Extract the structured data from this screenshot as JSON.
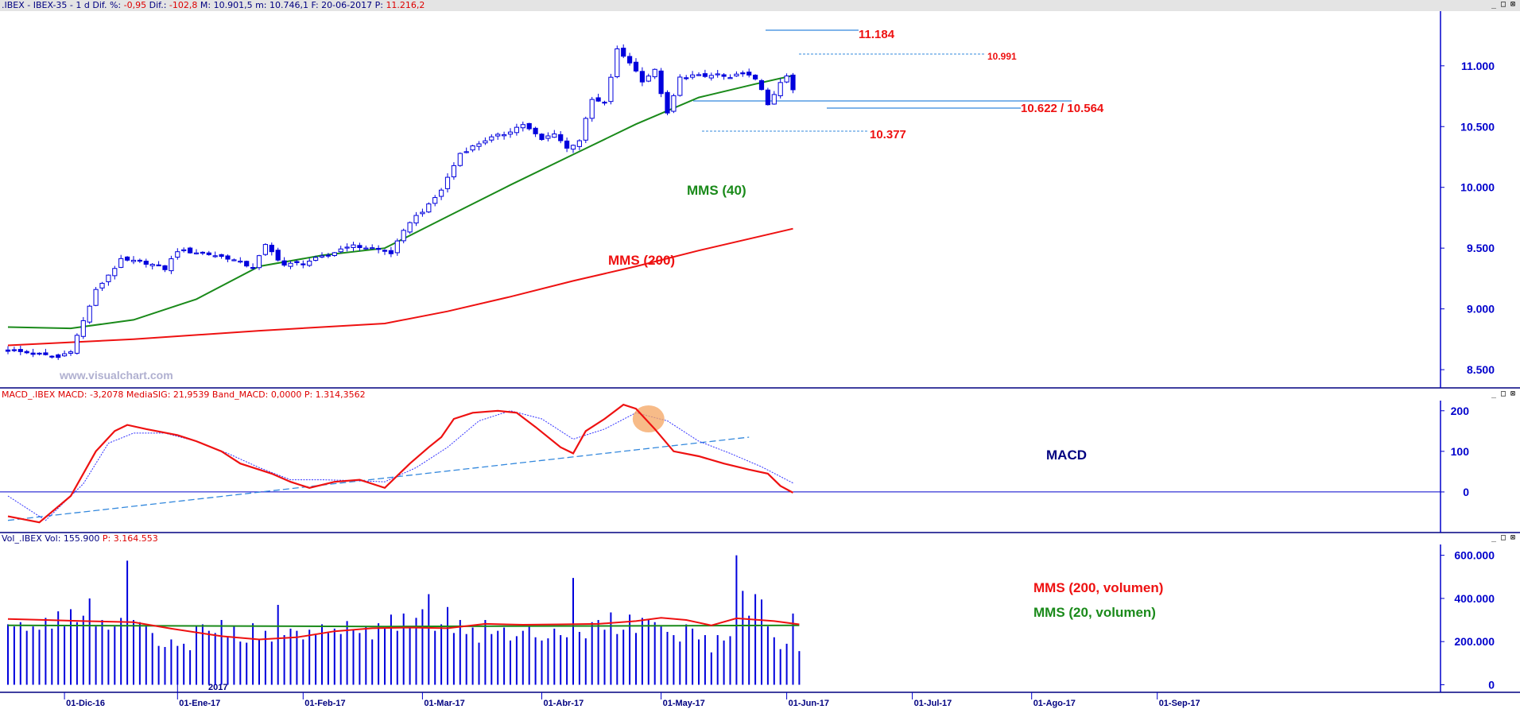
{
  "colors": {
    "candle": "#0000dd",
    "ma40": "#1a8a1a",
    "ma200": "#ee1111",
    "macd_line": "#ee1111",
    "signal_line": "#3333ff",
    "axis": "#0000cc",
    "annot_red": "#ee1111",
    "annot_green": "#1a8a1a",
    "annot_navy": "#000080",
    "highlight": "#f4a460",
    "watermark": "#b0b0d0",
    "header_text": "#000080",
    "header_value": "#dd0000"
  },
  "price_pane": {
    "header": {
      "symbol": ".IBEX - IBEX-35 -  1 d",
      "dif_pct_label": "Dif. %:",
      "dif_pct_value": "-0,95",
      "dif_label": "Dif.:",
      "dif_value": "-102,8",
      "max_label": "M:",
      "max_value": "10.901,5",
      "min_label": "m:",
      "min_value": "10.746,1",
      "date_label": "F:",
      "date_value": "20-06-2017",
      "price_label": "P:",
      "price_value": "11.216,2"
    },
    "watermark": "www.visualchart.com",
    "annotations": {
      "high": "11.184",
      "last": "10.991",
      "support": "10.622 / 10.564",
      "low": "10.377",
      "ma40_label": "MMS (40)",
      "ma200_label": "MMS (200)"
    }
  },
  "macd_pane": {
    "header": {
      "name": "MACD_.IBEX",
      "macd_label": "MACD:",
      "macd_value": "-3,2078",
      "sig_label": "MediaSIG:",
      "sig_value": "21,9539",
      "band_label": "Band_MACD:",
      "band_value": "0,0000",
      "p_label": "P:",
      "p_value": "1.314,3562"
    },
    "label": "MACD"
  },
  "volume_pane": {
    "header": {
      "name": "Vol_.IBEX",
      "vol_label": "Vol:",
      "vol_value": "155.900",
      "p_label": "P:",
      "p_value": "3.164.553"
    },
    "ma200_label": "MMS (200, volumen)",
    "ma20_label": "MMS (20, volumen)"
  },
  "window_buttons": [
    "_",
    "□",
    "⊠"
  ],
  "chart_data": [
    {
      "type": "candlestick",
      "title": ".IBEX - IBEX-35 - 1 d",
      "x_ticks": [
        "01-Dic-16",
        "01-Ene-17",
        "01-Feb-17",
        "01-Mar-17",
        "01-Abr-17",
        "01-May-17",
        "01-Jun-17",
        "01-Jul-17",
        "01-Ago-17",
        "01-Sep-17"
      ],
      "year_marker": "2017",
      "y_ticks": [
        "8.500",
        "9.000",
        "9.500",
        "10.000",
        "10.500",
        "11.000"
      ],
      "ylim": [
        8350,
        11450
      ],
      "close_waypoints": [
        [
          0,
          8660
        ],
        [
          3,
          8640
        ],
        [
          8,
          8600
        ],
        [
          10,
          8660
        ],
        [
          11,
          8780
        ],
        [
          12,
          8900
        ],
        [
          14,
          9150
        ],
        [
          16,
          9280
        ],
        [
          18,
          9400
        ],
        [
          22,
          9380
        ],
        [
          25,
          9330
        ],
        [
          27,
          9480
        ],
        [
          31,
          9460
        ],
        [
          35,
          9420
        ],
        [
          39,
          9340
        ],
        [
          41,
          9520
        ],
        [
          44,
          9360
        ],
        [
          47,
          9380
        ],
        [
          51,
          9440
        ],
        [
          54,
          9520
        ],
        [
          58,
          9500
        ],
        [
          61,
          9460
        ],
        [
          64,
          9720
        ],
        [
          67,
          9850
        ],
        [
          69,
          9980
        ],
        [
          72,
          10280
        ],
        [
          76,
          10390
        ],
        [
          79,
          10440
        ],
        [
          82,
          10520
        ],
        [
          85,
          10390
        ],
        [
          87,
          10450
        ],
        [
          89,
          10320
        ],
        [
          91,
          10390
        ],
        [
          93,
          10720
        ],
        [
          95,
          10690
        ],
        [
          97,
          11130
        ],
        [
          99,
          11030
        ],
        [
          101,
          10880
        ],
        [
          103,
          10960
        ],
        [
          105,
          10600
        ],
        [
          107,
          10900
        ],
        [
          109,
          10920
        ],
        [
          111,
          10910
        ],
        [
          113,
          10930
        ],
        [
          115,
          10890
        ],
        [
          117,
          10950
        ],
        [
          119,
          10880
        ],
        [
          120,
          10810
        ],
        [
          121,
          10690
        ],
        [
          122,
          10750
        ],
        [
          123,
          10860
        ],
        [
          124,
          10910
        ],
        [
          125,
          10800
        ]
      ],
      "high": 11184,
      "last_level": 10991,
      "support_levels": [
        10622,
        10564
      ],
      "low_level": 10377,
      "ma40": [
        [
          0,
          8850
        ],
        [
          10,
          8840
        ],
        [
          20,
          8910
        ],
        [
          30,
          9080
        ],
        [
          40,
          9350
        ],
        [
          50,
          9440
        ],
        [
          60,
          9500
        ],
        [
          70,
          9760
        ],
        [
          80,
          10020
        ],
        [
          90,
          10270
        ],
        [
          100,
          10520
        ],
        [
          110,
          10740
        ],
        [
          119,
          10850
        ],
        [
          125,
          10920
        ]
      ],
      "ma200": [
        [
          0,
          8700
        ],
        [
          20,
          8750
        ],
        [
          40,
          8820
        ],
        [
          60,
          8880
        ],
        [
          70,
          8980
        ],
        [
          80,
          9100
        ],
        [
          90,
          9230
        ],
        [
          100,
          9350
        ],
        [
          110,
          9480
        ],
        [
          125,
          9660
        ]
      ],
      "series": [
        {
          "name": "MMS (40)"
        },
        {
          "name": "MMS (200)"
        }
      ]
    },
    {
      "type": "line",
      "title": "MACD_.IBEX",
      "y_ticks": [
        "0",
        "100",
        "200"
      ],
      "ylim": [
        -100,
        225
      ],
      "macd": [
        [
          0,
          -60
        ],
        [
          5,
          -75
        ],
        [
          10,
          -10
        ],
        [
          14,
          100
        ],
        [
          17,
          150
        ],
        [
          19,
          165
        ],
        [
          22,
          155
        ],
        [
          27,
          140
        ],
        [
          30,
          125
        ],
        [
          34,
          100
        ],
        [
          37,
          70
        ],
        [
          40,
          55
        ],
        [
          42,
          45
        ],
        [
          45,
          25
        ],
        [
          48,
          10
        ],
        [
          52,
          25
        ],
        [
          56,
          30
        ],
        [
          60,
          10
        ],
        [
          64,
          70
        ],
        [
          67,
          110
        ],
        [
          69,
          135
        ],
        [
          71,
          180
        ],
        [
          74,
          195
        ],
        [
          78,
          200
        ],
        [
          81,
          195
        ],
        [
          84,
          160
        ],
        [
          88,
          110
        ],
        [
          90,
          95
        ],
        [
          92,
          150
        ],
        [
          95,
          180
        ],
        [
          98,
          215
        ],
        [
          100,
          205
        ],
        [
          103,
          155
        ],
        [
          106,
          100
        ],
        [
          110,
          88
        ],
        [
          114,
          70
        ],
        [
          118,
          55
        ],
        [
          121,
          45
        ],
        [
          123,
          15
        ],
        [
          125,
          -2
        ]
      ],
      "signal": [
        [
          0,
          -10
        ],
        [
          6,
          -70
        ],
        [
          12,
          20
        ],
        [
          16,
          120
        ],
        [
          20,
          145
        ],
        [
          25,
          145
        ],
        [
          30,
          125
        ],
        [
          35,
          95
        ],
        [
          40,
          60
        ],
        [
          45,
          30
        ],
        [
          50,
          30
        ],
        [
          55,
          28
        ],
        [
          60,
          25
        ],
        [
          65,
          60
        ],
        [
          70,
          110
        ],
        [
          75,
          175
        ],
        [
          80,
          200
        ],
        [
          85,
          180
        ],
        [
          90,
          130
        ],
        [
          95,
          155
        ],
        [
          100,
          195
        ],
        [
          105,
          175
        ],
        [
          110,
          125
        ],
        [
          115,
          95
        ],
        [
          120,
          62
        ],
        [
          125,
          22
        ]
      ],
      "trendline": [
        [
          0,
          -70
        ],
        [
          118,
          135
        ]
      ],
      "zero_line": 0,
      "highlight_at": [
        102,
        180
      ],
      "series": [
        {
          "name": "MACD"
        }
      ]
    },
    {
      "type": "bar",
      "title": "Vol_.IBEX",
      "y_ticks": [
        "0",
        "200.000",
        "400.000",
        "600.000"
      ],
      "ylim": [
        -35000,
        650000
      ],
      "volumes": [
        280000,
        270000,
        290000,
        250000,
        270000,
        255000,
        310000,
        260000,
        340000,
        270000,
        350000,
        290000,
        320000,
        400000,
        270000,
        300000,
        255000,
        270000,
        310000,
        575000,
        300000,
        290000,
        270000,
        240000,
        180000,
        175000,
        210000,
        180000,
        190000,
        160000,
        275000,
        280000,
        250000,
        240000,
        300000,
        225000,
        270000,
        200000,
        195000,
        285000,
        210000,
        250000,
        200000,
        370000,
        230000,
        260000,
        250000,
        210000,
        255000,
        230000,
        280000,
        240000,
        260000,
        235000,
        295000,
        255000,
        240000,
        270000,
        210000,
        285000,
        265000,
        325000,
        250000,
        330000,
        265000,
        310000,
        350000,
        420000,
        250000,
        280000,
        360000,
        240000,
        300000,
        235000,
        265000,
        195000,
        300000,
        235000,
        250000,
        265000,
        205000,
        225000,
        250000,
        275000,
        220000,
        205000,
        215000,
        260000,
        230000,
        220000,
        495000,
        245000,
        215000,
        290000,
        300000,
        255000,
        335000,
        235000,
        255000,
        325000,
        240000,
        310000,
        300000,
        290000,
        270000,
        245000,
        230000,
        200000,
        280000,
        260000,
        210000,
        230000,
        150000,
        230000,
        205000,
        225000,
        600000,
        435000,
        320000,
        420000,
        395000,
        270000,
        220000,
        165000,
        190000,
        330000,
        155900
      ],
      "ma200": [
        [
          0,
          305000
        ],
        [
          6,
          300000
        ],
        [
          12,
          295000
        ],
        [
          20,
          290000
        ],
        [
          26,
          260000
        ],
        [
          34,
          225000
        ],
        [
          40,
          210000
        ],
        [
          46,
          220000
        ],
        [
          52,
          248000
        ],
        [
          58,
          262000
        ],
        [
          64,
          265000
        ],
        [
          70,
          262000
        ],
        [
          76,
          282000
        ],
        [
          82,
          278000
        ],
        [
          88,
          280000
        ],
        [
          94,
          282000
        ],
        [
          100,
          295000
        ],
        [
          104,
          310000
        ],
        [
          108,
          300000
        ],
        [
          112,
          275000
        ],
        [
          116,
          308000
        ],
        [
          122,
          295000
        ],
        [
          126,
          280000
        ]
      ],
      "ma20": [
        [
          0,
          275000
        ],
        [
          60,
          270000
        ],
        [
          126,
          275000
        ]
      ],
      "series": [
        {
          "name": "MMS (200, volumen)"
        },
        {
          "name": "MMS (20, volumen)"
        }
      ]
    }
  ]
}
